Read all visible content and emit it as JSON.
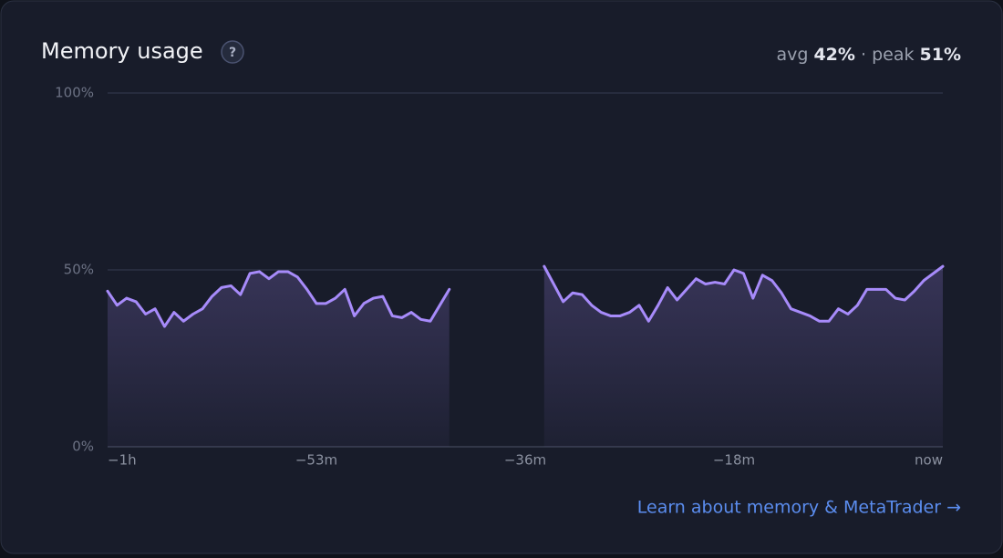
{
  "header": {
    "help": "?",
    "stats": {
      "avg_label": "avg",
      "avg": "42%",
      "separator": "·",
      "peak_label": "peak",
      "peak": "51%"
    }
  },
  "footer": {
    "link": "Learn about memory & MetaTrader →"
  },
  "chart_data": {
    "type": "area",
    "title": "Memory usage",
    "categories": [
      "−1h",
      null,
      null,
      null,
      null,
      null,
      null,
      null,
      null,
      null,
      null,
      null,
      null,
      null,
      null,
      null,
      null,
      null,
      null,
      null,
      null,
      null,
      "−53m",
      null,
      null,
      null,
      null,
      null,
      null,
      null,
      null,
      null,
      null,
      null,
      null,
      null,
      null,
      null,
      null,
      null,
      null,
      null,
      null,
      null,
      "−36m",
      null,
      null,
      null,
      null,
      null,
      null,
      null,
      null,
      null,
      null,
      null,
      null,
      null,
      null,
      null,
      null,
      null,
      null,
      null,
      null,
      null,
      "−18m",
      null,
      null,
      null,
      null,
      null,
      null,
      null,
      null,
      null,
      null,
      null,
      null,
      null,
      null,
      null,
      null,
      null,
      null,
      null,
      null,
      null,
      "now"
    ],
    "series": [
      {
        "name": "Memory",
        "color": "#a78bfa",
        "values": [
          44,
          40,
          42,
          41,
          37.5,
          39,
          34,
          38,
          35.5,
          37.5,
          39,
          42.5,
          45,
          45.5,
          43,
          49,
          49.5,
          47.5,
          49.5,
          49.5,
          48,
          44.5,
          40.5,
          40.5,
          42,
          44.5,
          37,
          40.5,
          42,
          42.5,
          37,
          36.5,
          38,
          36,
          35.5,
          40,
          44.5,
          null,
          null,
          null,
          null,
          null,
          null,
          null,
          null,
          null,
          51,
          46,
          41,
          43.5,
          43,
          40,
          38,
          37,
          37,
          38,
          40,
          35.5,
          40,
          45,
          41.5,
          44.5,
          47.5,
          46,
          46.5,
          46,
          50,
          49,
          42,
          48.5,
          47,
          43.5,
          39,
          38,
          37,
          35.5,
          35.5,
          39,
          37.5,
          40,
          44.5,
          44.5,
          44.5,
          42,
          41.5,
          44,
          47,
          49,
          51
        ]
      }
    ],
    "ylim": [
      0,
      100
    ],
    "yticks": [
      {
        "value": 0,
        "label": "0%"
      },
      {
        "value": 50,
        "label": "50%"
      },
      {
        "value": 100,
        "label": "100%"
      }
    ],
    "grid": true
  }
}
